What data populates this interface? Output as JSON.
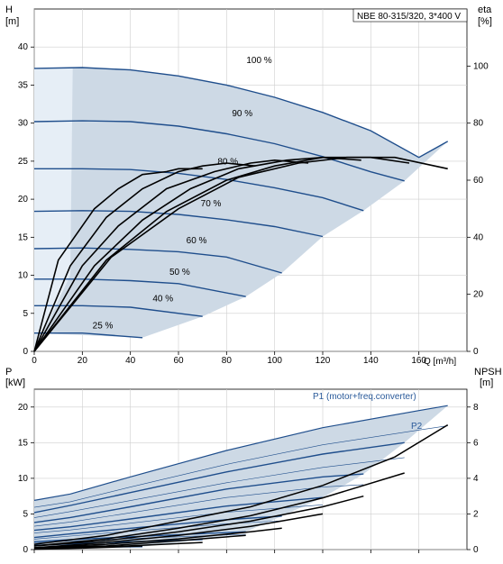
{
  "colors": {
    "region_fill": "#cdd9e5",
    "region_left_fill": "#e6eef6",
    "curve_blue": "#1f4e8c",
    "curve_black": "#000000",
    "grid": "#cfcfcf",
    "axis": "#000000",
    "label_blue": "#2a5a9a"
  },
  "chart_data": [
    {
      "type": "line",
      "title": "NBE 80-315/320, 3*400 V",
      "xlabel": "Q [m³/h]",
      "ylabel": "H\n[m]",
      "ylabel_right": "eta\n[%]",
      "xlim": [
        0,
        180
      ],
      "ylim": [
        0,
        45
      ],
      "ylim_right": [
        0,
        120
      ],
      "grid": true,
      "x_ticks": [
        0,
        20,
        40,
        60,
        80,
        100,
        120,
        140,
        160
      ],
      "y_ticks": [
        0,
        5,
        10,
        15,
        20,
        25,
        30,
        35,
        40
      ],
      "y_right_ticks": [
        0,
        20,
        40,
        60,
        80,
        100
      ],
      "series_head": [
        {
          "name": "100 %",
          "x": [
            0,
            20,
            40,
            60,
            80,
            100,
            120,
            140,
            160,
            172
          ],
          "values": [
            37.2,
            37.3,
            37.0,
            36.2,
            35.0,
            33.4,
            31.4,
            29.0,
            25.5,
            27.6
          ]
        },
        {
          "name": "90 %",
          "x": [
            0,
            20,
            40,
            60,
            80,
            100,
            120,
            140,
            154
          ],
          "values": [
            30.2,
            30.3,
            30.2,
            29.6,
            28.6,
            27.3,
            25.6,
            23.6,
            22.4
          ]
        },
        {
          "name": "80 %",
          "x": [
            0,
            20,
            40,
            60,
            80,
            100,
            120,
            137
          ],
          "values": [
            24.0,
            24.0,
            23.9,
            23.4,
            22.6,
            21.5,
            20.2,
            18.5
          ]
        },
        {
          "name": "70 %",
          "x": [
            0,
            20,
            40,
            60,
            80,
            100,
            120
          ],
          "values": [
            18.4,
            18.5,
            18.4,
            18.0,
            17.3,
            16.4,
            15.1
          ]
        },
        {
          "name": "60 %",
          "x": [
            0,
            20,
            40,
            60,
            80,
            103
          ],
          "values": [
            13.5,
            13.6,
            13.4,
            13.1,
            12.4,
            10.3
          ]
        },
        {
          "name": "50 %",
          "x": [
            0,
            20,
            40,
            60,
            88
          ],
          "values": [
            9.5,
            9.5,
            9.3,
            8.9,
            7.2
          ]
        },
        {
          "name": "40 %",
          "x": [
            0,
            20,
            40,
            70
          ],
          "values": [
            6.0,
            6.0,
            5.8,
            4.6
          ]
        },
        {
          "name": "25 %",
          "x": [
            0,
            20,
            45
          ],
          "values": [
            2.4,
            2.4,
            1.8
          ]
        }
      ],
      "series_eta": [
        {
          "x": [
            0,
            10,
            25,
            35,
            45,
            55,
            60,
            70
          ],
          "values": [
            0,
            32,
            50,
            57,
            62,
            63,
            64,
            64
          ]
        },
        {
          "x": [
            0,
            15,
            30,
            45,
            60,
            70,
            80,
            92
          ],
          "values": [
            0,
            30,
            47,
            57,
            63,
            65,
            66,
            65
          ]
        },
        {
          "x": [
            0,
            20,
            35,
            55,
            75,
            90,
            100,
            114
          ],
          "values": [
            0,
            30,
            44,
            57,
            63,
            66,
            67,
            66
          ]
        },
        {
          "x": [
            0,
            25,
            45,
            65,
            85,
            105,
            120,
            136
          ],
          "values": [
            0,
            30,
            46,
            57,
            64,
            67,
            68,
            67
          ]
        },
        {
          "x": [
            0,
            30,
            55,
            80,
            100,
            120,
            140,
            156
          ],
          "values": [
            0,
            32,
            49,
            60,
            65,
            68,
            68,
            66
          ]
        },
        {
          "x": [
            0,
            32,
            60,
            85,
            110,
            130,
            150,
            172
          ],
          "values": [
            0,
            33,
            50,
            61,
            66,
            68,
            68,
            64
          ]
        }
      ],
      "labels_only": [
        "100 %",
        "90 %",
        "80 %",
        "70 %",
        "60 %",
        "50 %",
        "40 %",
        "25 %"
      ]
    },
    {
      "type": "line",
      "xlabel": "",
      "ylabel": "P\n[kW]",
      "ylabel_right": "NPSH\n[m]",
      "xlim": [
        0,
        180
      ],
      "ylim": [
        0,
        22.5
      ],
      "ylim_right": [
        0,
        9
      ],
      "grid": true,
      "x_ticks": [
        0,
        20,
        40,
        60,
        80,
        100,
        120,
        140,
        160
      ],
      "y_ticks": [
        0,
        5,
        10,
        15,
        20
      ],
      "y_right_ticks": [
        0,
        2,
        4,
        6,
        8
      ],
      "annotations": [
        "P1 (motor+freq.converter)",
        "P2"
      ],
      "series_p1": [
        {
          "name": "P1 (motor+freq.converter)",
          "x": [
            0,
            15,
            40,
            80,
            120,
            160,
            172
          ],
          "values": [
            6.9,
            7.8,
            10.2,
            13.9,
            17.1,
            19.5,
            20.2
          ]
        },
        {
          "x": [
            0,
            15,
            40,
            80,
            120,
            154
          ],
          "values": [
            5.2,
            6.2,
            8.0,
            10.9,
            13.4,
            15.0
          ]
        },
        {
          "x": [
            0,
            15,
            40,
            80,
            120,
            137
          ],
          "values": [
            3.8,
            4.5,
            6.0,
            8.5,
            10.2,
            10.6
          ]
        },
        {
          "x": [
            0,
            15,
            40,
            80,
            120
          ],
          "values": [
            2.7,
            3.2,
            4.3,
            6.1,
            7.3
          ]
        },
        {
          "x": [
            0,
            15,
            40,
            80,
            103
          ],
          "values": [
            1.7,
            2.2,
            3.0,
            4.2,
            4.7
          ]
        },
        {
          "x": [
            0,
            15,
            40,
            88
          ],
          "values": [
            1.1,
            1.4,
            1.8,
            2.5
          ]
        },
        {
          "x": [
            0,
            15,
            40,
            70
          ],
          "values": [
            0.6,
            0.8,
            1.1,
            1.4
          ]
        },
        {
          "x": [
            0,
            15,
            45
          ],
          "values": [
            0.2,
            0.3,
            0.4
          ]
        }
      ],
      "series_npsh": [
        {
          "x": [
            0,
            30,
            60,
            90,
            120,
            150,
            172
          ],
          "values": [
            0.3,
            0.8,
            1.6,
            2.4,
            3.6,
            5.2,
            7.0
          ]
        },
        {
          "x": [
            0,
            30,
            60,
            90,
            120,
            154
          ],
          "values": [
            0.2,
            0.6,
            1.2,
            1.9,
            2.9,
            4.3
          ]
        },
        {
          "x": [
            0,
            30,
            60,
            90,
            120,
            137
          ],
          "values": [
            0.2,
            0.5,
            1.0,
            1.6,
            2.4,
            3.0
          ]
        },
        {
          "x": [
            0,
            30,
            60,
            90,
            120
          ],
          "values": [
            0.1,
            0.4,
            0.8,
            1.3,
            2.0
          ]
        },
        {
          "x": [
            0,
            30,
            60,
            90,
            103
          ],
          "values": [
            0.1,
            0.3,
            0.6,
            1.0,
            1.2
          ]
        },
        {
          "x": [
            0,
            30,
            60,
            88
          ],
          "values": [
            0.1,
            0.2,
            0.5,
            0.8
          ]
        },
        {
          "x": [
            0,
            30,
            70
          ],
          "values": [
            0.05,
            0.15,
            0.4
          ]
        },
        {
          "x": [
            0,
            20,
            45
          ],
          "values": [
            0.02,
            0.08,
            0.2
          ]
        }
      ]
    }
  ]
}
